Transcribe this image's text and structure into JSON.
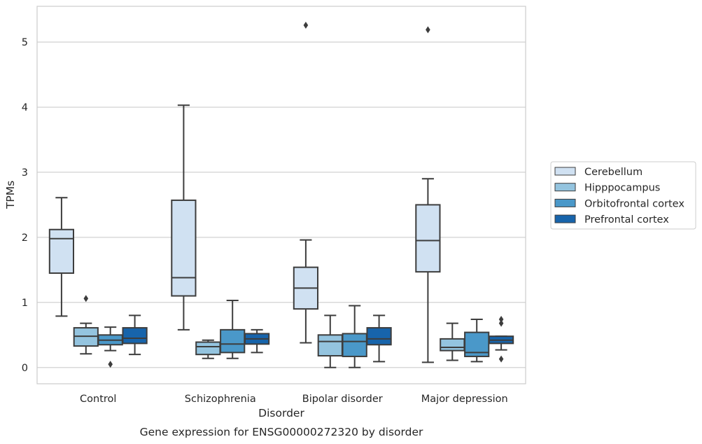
{
  "chart_data": {
    "type": "box",
    "xlabel": "Disorder",
    "ylabel": "TPMs",
    "caption": "Gene expression for ENSG00000272320 by disorder",
    "ylim": [
      -0.25,
      5.55
    ],
    "yticks": [
      0,
      1,
      2,
      3,
      4,
      5
    ],
    "grid": "horizontal",
    "legend_position": "right",
    "categories": [
      "Control",
      "Schizophrenia",
      "Bipolar disorder",
      "Major depression"
    ],
    "series": [
      {
        "name": "Cerebellum",
        "color": "#d0e1f2",
        "boxes": [
          {
            "whislo": 0.79,
            "q1": 1.45,
            "med": 1.98,
            "q3": 2.12,
            "whishi": 2.61,
            "fliers": []
          },
          {
            "whislo": 0.58,
            "q1": 1.1,
            "med": 1.38,
            "q3": 2.57,
            "whishi": 4.03,
            "fliers": []
          },
          {
            "whislo": 0.38,
            "q1": 0.9,
            "med": 1.22,
            "q3": 1.54,
            "whishi": 1.96,
            "fliers": [
              5.26
            ]
          },
          {
            "whislo": 0.08,
            "q1": 1.47,
            "med": 1.95,
            "q3": 2.5,
            "whishi": 2.9,
            "fliers": [
              5.19
            ]
          }
        ]
      },
      {
        "name": "Hipppocampus",
        "color": "#94c4df",
        "boxes": [
          {
            "whislo": 0.21,
            "q1": 0.33,
            "med": 0.48,
            "q3": 0.61,
            "whishi": 0.68,
            "fliers": [
              1.06
            ]
          },
          {
            "whislo": 0.14,
            "q1": 0.2,
            "med": 0.32,
            "q3": 0.39,
            "whishi": 0.42,
            "fliers": []
          },
          {
            "whislo": 0.0,
            "q1": 0.18,
            "med": 0.4,
            "q3": 0.5,
            "whishi": 0.8,
            "fliers": []
          },
          {
            "whislo": 0.11,
            "q1": 0.26,
            "med": 0.31,
            "q3": 0.44,
            "whishi": 0.68,
            "fliers": []
          }
        ]
      },
      {
        "name": "Orbitofrontal cortex",
        "color": "#4a98c9",
        "boxes": [
          {
            "whislo": 0.26,
            "q1": 0.35,
            "med": 0.42,
            "q3": 0.5,
            "whishi": 0.62,
            "fliers": [
              0.05
            ]
          },
          {
            "whislo": 0.14,
            "q1": 0.23,
            "med": 0.36,
            "q3": 0.58,
            "whishi": 1.03,
            "fliers": []
          },
          {
            "whislo": 0.0,
            "q1": 0.17,
            "med": 0.4,
            "q3": 0.52,
            "whishi": 0.95,
            "fliers": []
          },
          {
            "whislo": 0.09,
            "q1": 0.17,
            "med": 0.23,
            "q3": 0.54,
            "whishi": 0.74,
            "fliers": []
          }
        ]
      },
      {
        "name": "Prefrontal cortex",
        "color": "#1764ab",
        "boxes": [
          {
            "whislo": 0.2,
            "q1": 0.37,
            "med": 0.45,
            "q3": 0.61,
            "whishi": 0.8,
            "fliers": []
          },
          {
            "whislo": 0.23,
            "q1": 0.36,
            "med": 0.44,
            "q3": 0.52,
            "whishi": 0.58,
            "fliers": []
          },
          {
            "whislo": 0.09,
            "q1": 0.35,
            "med": 0.44,
            "q3": 0.61,
            "whishi": 0.8,
            "fliers": []
          },
          {
            "whislo": 0.27,
            "q1": 0.37,
            "med": 0.42,
            "q3": 0.48,
            "whishi": 0.48,
            "fliers": [
              0.13,
              0.68,
              0.74
            ]
          }
        ]
      }
    ]
  }
}
